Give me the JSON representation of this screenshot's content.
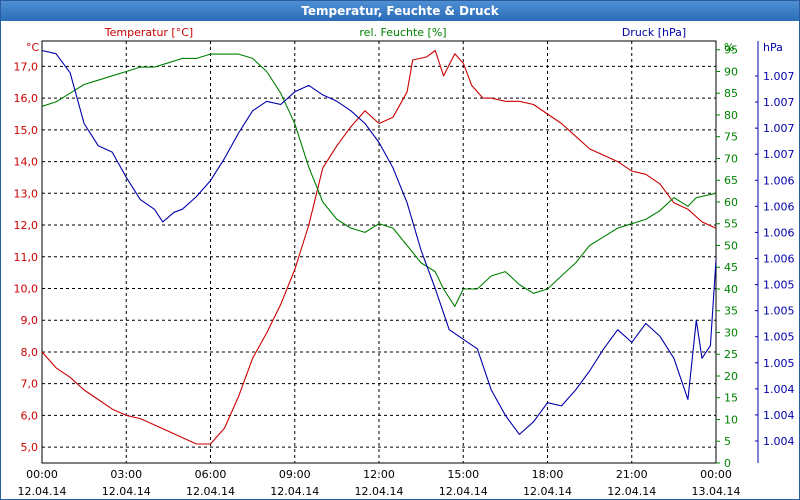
{
  "window": {
    "title": "Temperatur, Feuchte & Druck"
  },
  "colors": {
    "temperature": "#cc0000",
    "humidity": "#008000",
    "pressure": "#0000aa",
    "grid": "#000000"
  },
  "chart_data": {
    "type": "line",
    "title": "Temperatur, Feuchte & Druck",
    "grid": true,
    "x_range": [
      "12.04.14 00:00",
      "13.04.14 00:00"
    ],
    "x_ticks": [
      {
        "time": "00:00",
        "date": "12.04.14"
      },
      {
        "time": "03:00",
        "date": "12.04.14"
      },
      {
        "time": "06:00",
        "date": "12.04.14"
      },
      {
        "time": "09:00",
        "date": "12.04.14"
      },
      {
        "time": "12:00",
        "date": "12.04.14"
      },
      {
        "time": "15:00",
        "date": "12.04.14"
      },
      {
        "time": "18:00",
        "date": "12.04.14"
      },
      {
        "time": "21:00",
        "date": "12.04.14"
      },
      {
        "time": "00:00",
        "date": "13.04.14"
      }
    ],
    "axes": {
      "temperature": {
        "label": "Temperatur [°C]",
        "unit": "°C",
        "range": [
          4.5,
          17.8
        ],
        "ticks": [
          "5,0",
          "6,0",
          "7,0",
          "8,0",
          "9,0",
          "10,0",
          "11,0",
          "12,0",
          "13,0",
          "14,0",
          "15,0",
          "16,0",
          "17,0"
        ]
      },
      "humidity": {
        "label": "rel. Feuchte [%]",
        "unit": "%",
        "range": [
          0,
          97
        ],
        "ticks": [
          "0",
          "5",
          "10",
          "15",
          "20",
          "25",
          "30",
          "35",
          "40",
          "45",
          "50",
          "55",
          "60",
          "65",
          "70",
          "75",
          "80",
          "85",
          "90",
          "95"
        ]
      },
      "pressure": {
        "label": "Druck [hPa]",
        "unit": "hPa",
        "ticks": [
          "1.007",
          "1.007",
          "1.007",
          "1.007",
          "1.006",
          "1.006",
          "1.006",
          "1.006",
          "1.005",
          "1.005",
          "1.005",
          "1.005",
          "1.004",
          "1.004",
          "1.004"
        ]
      }
    },
    "series": [
      {
        "name": "Temperatur [°C]",
        "axis": "temperature",
        "points": [
          [
            0.0,
            8.0
          ],
          [
            0.5,
            7.5
          ],
          [
            1.0,
            7.2
          ],
          [
            1.5,
            6.8
          ],
          [
            2.0,
            6.5
          ],
          [
            2.5,
            6.2
          ],
          [
            3.0,
            6.0
          ],
          [
            3.5,
            5.9
          ],
          [
            4.0,
            5.7
          ],
          [
            4.5,
            5.5
          ],
          [
            5.0,
            5.3
          ],
          [
            5.5,
            5.1
          ],
          [
            6.0,
            5.1
          ],
          [
            6.5,
            5.6
          ],
          [
            7.0,
            6.6
          ],
          [
            7.5,
            7.8
          ],
          [
            8.0,
            8.6
          ],
          [
            8.5,
            9.5
          ],
          [
            9.0,
            10.6
          ],
          [
            9.5,
            12.0
          ],
          [
            10.0,
            13.8
          ],
          [
            10.5,
            14.5
          ],
          [
            11.0,
            15.1
          ],
          [
            11.5,
            15.6
          ],
          [
            12.0,
            15.2
          ],
          [
            12.5,
            15.4
          ],
          [
            13.0,
            16.2
          ],
          [
            13.2,
            17.2
          ],
          [
            13.7,
            17.3
          ],
          [
            14.0,
            17.5
          ],
          [
            14.3,
            16.7
          ],
          [
            14.7,
            17.4
          ],
          [
            15.0,
            17.1
          ],
          [
            15.3,
            16.4
          ],
          [
            15.7,
            16.0
          ],
          [
            16.0,
            16.0
          ],
          [
            16.5,
            15.9
          ],
          [
            17.0,
            15.9
          ],
          [
            17.5,
            15.8
          ],
          [
            18.0,
            15.5
          ],
          [
            18.5,
            15.2
          ],
          [
            19.0,
            14.8
          ],
          [
            19.5,
            14.4
          ],
          [
            20.0,
            14.2
          ],
          [
            20.5,
            14.0
          ],
          [
            21.0,
            13.7
          ],
          [
            21.5,
            13.6
          ],
          [
            22.0,
            13.3
          ],
          [
            22.5,
            12.7
          ],
          [
            23.0,
            12.5
          ],
          [
            23.5,
            12.1
          ],
          [
            24.0,
            11.9
          ]
        ]
      },
      {
        "name": "rel. Feuchte [%]",
        "axis": "humidity",
        "points": [
          [
            0.0,
            82
          ],
          [
            0.5,
            83
          ],
          [
            1.0,
            85
          ],
          [
            1.5,
            87
          ],
          [
            2.0,
            88
          ],
          [
            2.5,
            89
          ],
          [
            3.0,
            90
          ],
          [
            3.5,
            91
          ],
          [
            4.0,
            91
          ],
          [
            4.5,
            92
          ],
          [
            5.0,
            93
          ],
          [
            5.5,
            93
          ],
          [
            6.0,
            94
          ],
          [
            6.5,
            94
          ],
          [
            7.0,
            94
          ],
          [
            7.5,
            93
          ],
          [
            8.0,
            90
          ],
          [
            8.5,
            85
          ],
          [
            9.0,
            78
          ],
          [
            9.5,
            68
          ],
          [
            10.0,
            60
          ],
          [
            10.5,
            56
          ],
          [
            11.0,
            54
          ],
          [
            11.5,
            53
          ],
          [
            12.0,
            55
          ],
          [
            12.5,
            54
          ],
          [
            13.0,
            50
          ],
          [
            13.5,
            46
          ],
          [
            14.0,
            44
          ],
          [
            14.3,
            40
          ],
          [
            14.7,
            36
          ],
          [
            15.0,
            40
          ],
          [
            15.5,
            40
          ],
          [
            16.0,
            43
          ],
          [
            16.5,
            44
          ],
          [
            17.0,
            41
          ],
          [
            17.5,
            39
          ],
          [
            18.0,
            40
          ],
          [
            18.5,
            43
          ],
          [
            19.0,
            46
          ],
          [
            19.5,
            50
          ],
          [
            20.0,
            52
          ],
          [
            20.5,
            54
          ],
          [
            21.0,
            55
          ],
          [
            21.5,
            56
          ],
          [
            22.0,
            58
          ],
          [
            22.5,
            61
          ],
          [
            23.0,
            59
          ],
          [
            23.3,
            61
          ],
          [
            24.0,
            62
          ]
        ]
      },
      {
        "name": "Druck [hPa]",
        "axis": "pressure",
        "points": [
          [
            0.0,
            17.5
          ],
          [
            0.5,
            17.4
          ],
          [
            1.0,
            16.8
          ],
          [
            1.5,
            15.2
          ],
          [
            2.0,
            14.5
          ],
          [
            2.5,
            14.3
          ],
          [
            3.0,
            13.5
          ],
          [
            3.5,
            12.8
          ],
          [
            4.0,
            12.5
          ],
          [
            4.3,
            12.1
          ],
          [
            4.7,
            12.4
          ],
          [
            5.0,
            12.5
          ],
          [
            5.5,
            12.9
          ],
          [
            6.0,
            13.4
          ],
          [
            6.5,
            14.1
          ],
          [
            7.0,
            14.9
          ],
          [
            7.5,
            15.6
          ],
          [
            8.0,
            15.9
          ],
          [
            8.5,
            15.8
          ],
          [
            9.0,
            16.2
          ],
          [
            9.5,
            16.4
          ],
          [
            10.0,
            16.1
          ],
          [
            10.5,
            15.9
          ],
          [
            11.0,
            15.6
          ],
          [
            11.5,
            15.2
          ],
          [
            12.0,
            14.6
          ],
          [
            12.5,
            13.8
          ],
          [
            13.0,
            12.7
          ],
          [
            13.5,
            11.2
          ],
          [
            14.0,
            10.0
          ],
          [
            14.5,
            8.7
          ],
          [
            15.0,
            8.4
          ],
          [
            15.5,
            8.1
          ],
          [
            16.0,
            6.8
          ],
          [
            16.5,
            6.0
          ],
          [
            17.0,
            5.4
          ],
          [
            17.5,
            5.8
          ],
          [
            18.0,
            6.4
          ],
          [
            18.5,
            6.3
          ],
          [
            19.0,
            6.8
          ],
          [
            19.5,
            7.4
          ],
          [
            20.0,
            8.1
          ],
          [
            20.5,
            8.7
          ],
          [
            21.0,
            8.3
          ],
          [
            21.5,
            8.9
          ],
          [
            22.0,
            8.5
          ],
          [
            22.5,
            7.8
          ],
          [
            23.0,
            6.5
          ],
          [
            23.3,
            9.0
          ],
          [
            23.5,
            7.8
          ],
          [
            23.8,
            8.2
          ],
          [
            24.0,
            10.9
          ]
        ]
      }
    ]
  }
}
